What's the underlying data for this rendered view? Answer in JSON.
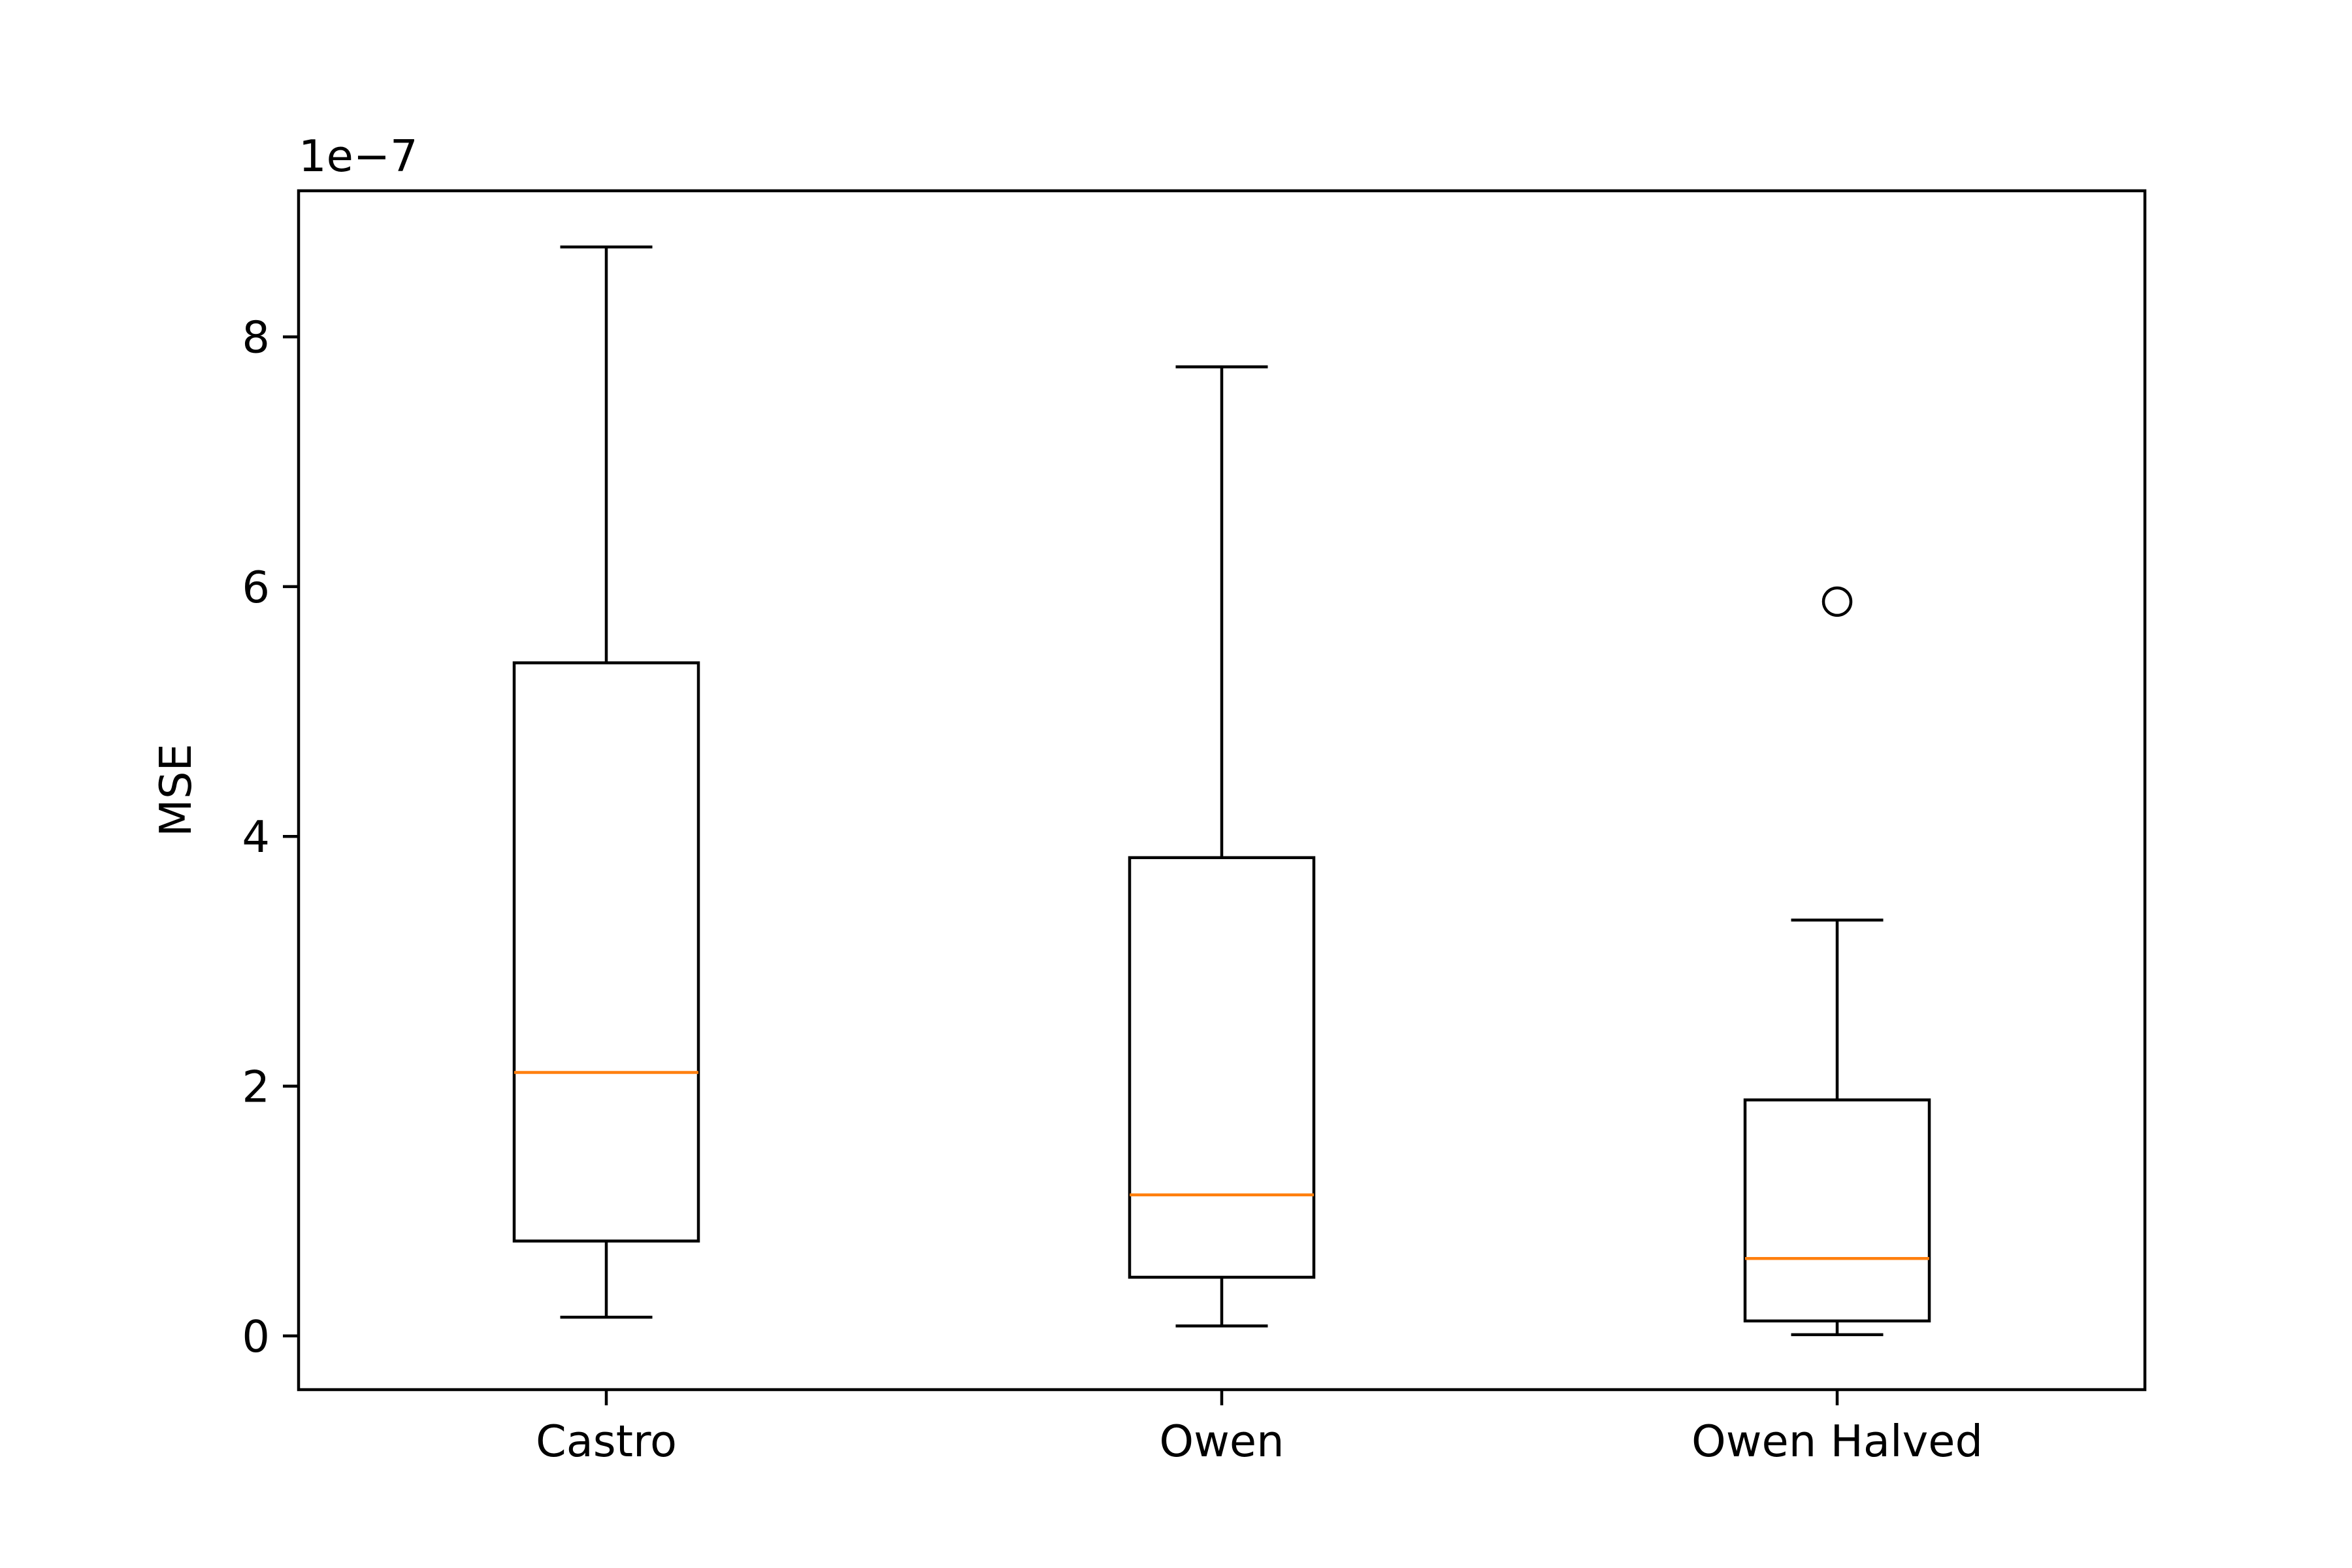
{
  "chart_data": {
    "type": "box",
    "title": "",
    "xlabel": "",
    "ylabel": "MSE",
    "scale_label": "1e−7",
    "scale_factor": 1e-07,
    "categories": [
      "Castro",
      "Owen",
      "Owen Halved"
    ],
    "yticks": [
      0,
      2,
      4,
      6,
      8
    ],
    "ylim": [
      -0.43,
      9.17
    ],
    "grid": false,
    "boxes": [
      {
        "name": "Castro",
        "whisker_low": 0.15,
        "q1": 0.76,
        "median": 2.11,
        "q3": 5.39,
        "whisker_high": 8.72,
        "outliers": []
      },
      {
        "name": "Owen",
        "whisker_low": 0.08,
        "q1": 0.47,
        "median": 1.13,
        "q3": 3.83,
        "whisker_high": 7.76,
        "outliers": []
      },
      {
        "name": "Owen Halved",
        "whisker_low": 0.01,
        "q1": 0.12,
        "median": 0.62,
        "q3": 1.89,
        "whisker_high": 3.33,
        "outliers": [
          5.88
        ]
      }
    ],
    "colors": {
      "box": "#000000",
      "median": "#ff7f0e",
      "outlier": "#000000"
    }
  }
}
